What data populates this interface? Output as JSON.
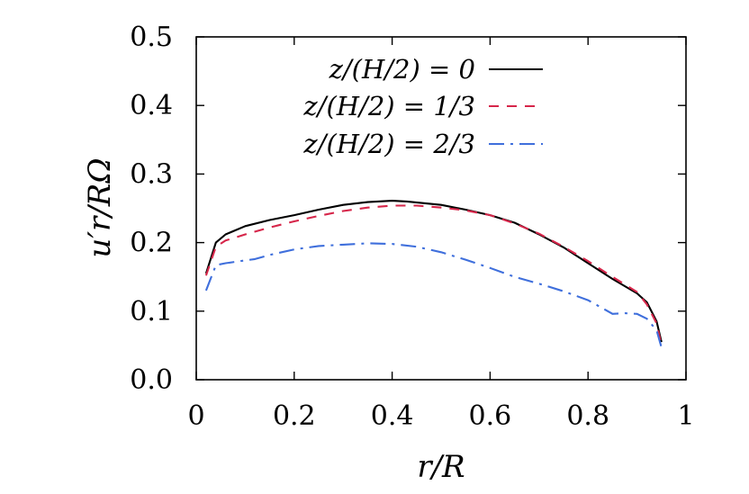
{
  "chart_data": {
    "type": "line",
    "xlabel": "r/R",
    "ylabel": "u′r/RΩ",
    "xlim": [
      0,
      1
    ],
    "ylim": [
      0,
      0.5
    ],
    "xticks": [
      {
        "value": 0,
        "label": "0"
      },
      {
        "value": 0.2,
        "label": "0.2"
      },
      {
        "value": 0.4,
        "label": "0.4"
      },
      {
        "value": 0.6,
        "label": "0.6"
      },
      {
        "value": 0.8,
        "label": "0.8"
      },
      {
        "value": 1,
        "label": "1"
      }
    ],
    "yticks": [
      {
        "value": 0.0,
        "label": "0.0"
      },
      {
        "value": 0.1,
        "label": "0.1"
      },
      {
        "value": 0.2,
        "label": "0.2"
      },
      {
        "value": 0.3,
        "label": "0.3"
      },
      {
        "value": 0.4,
        "label": "0.4"
      },
      {
        "value": 0.5,
        "label": "0.5"
      }
    ],
    "grid": false,
    "legend_position": "top-right",
    "series": [
      {
        "name": "z/(H/2) = 0",
        "color": "#000000",
        "dash": "solid",
        "x": [
          0.02,
          0.04,
          0.06,
          0.1,
          0.15,
          0.2,
          0.25,
          0.3,
          0.35,
          0.4,
          0.43,
          0.5,
          0.55,
          0.6,
          0.65,
          0.7,
          0.75,
          0.8,
          0.85,
          0.9,
          0.92,
          0.94,
          0.95
        ],
        "y": [
          0.155,
          0.2,
          0.212,
          0.224,
          0.233,
          0.24,
          0.248,
          0.255,
          0.259,
          0.261,
          0.26,
          0.255,
          0.248,
          0.24,
          0.229,
          0.212,
          0.193,
          0.17,
          0.147,
          0.126,
          0.113,
          0.085,
          0.055
        ]
      },
      {
        "name": "z/(H/2) = 1/3",
        "color": "#d6264a",
        "dash": "dashed",
        "x": [
          0.02,
          0.04,
          0.06,
          0.1,
          0.15,
          0.2,
          0.25,
          0.3,
          0.35,
          0.4,
          0.45,
          0.5,
          0.55,
          0.6,
          0.65,
          0.7,
          0.75,
          0.8,
          0.85,
          0.9,
          0.92,
          0.94,
          0.95
        ],
        "y": [
          0.152,
          0.194,
          0.203,
          0.212,
          0.222,
          0.231,
          0.239,
          0.246,
          0.251,
          0.254,
          0.254,
          0.251,
          0.247,
          0.24,
          0.228,
          0.213,
          0.194,
          0.173,
          0.15,
          0.128,
          0.11,
          0.082,
          0.05
        ]
      },
      {
        "name": "z/(H/2) = 2/3",
        "color": "#3f6fdc",
        "dash": "dashdot",
        "x": [
          0.02,
          0.04,
          0.06,
          0.1,
          0.12,
          0.15,
          0.2,
          0.25,
          0.3,
          0.35,
          0.4,
          0.45,
          0.5,
          0.55,
          0.6,
          0.65,
          0.7,
          0.75,
          0.8,
          0.85,
          0.875,
          0.9,
          0.92,
          0.94,
          0.95
        ],
        "y": [
          0.13,
          0.167,
          0.17,
          0.174,
          0.176,
          0.182,
          0.19,
          0.195,
          0.197,
          0.199,
          0.198,
          0.194,
          0.186,
          0.175,
          0.163,
          0.15,
          0.14,
          0.129,
          0.116,
          0.096,
          0.097,
          0.096,
          0.089,
          0.072,
          0.047
        ]
      }
    ]
  }
}
